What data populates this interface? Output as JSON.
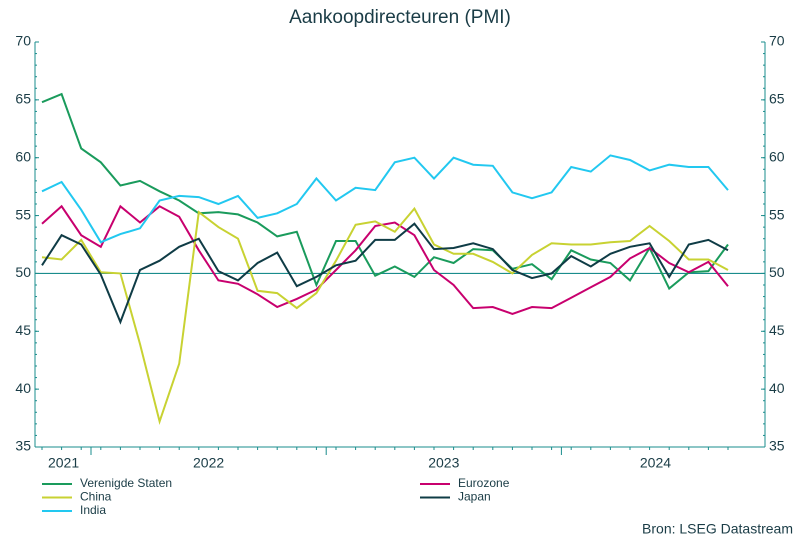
{
  "chart_data": {
    "type": "line",
    "title": "Aankoopdirecteuren (PMI)",
    "categories": [
      null,
      null,
      null,
      null,
      null,
      null,
      null,
      null,
      null,
      null,
      null,
      null,
      null,
      null,
      null,
      null,
      null,
      null,
      null,
      null,
      null,
      null,
      null,
      null,
      null,
      null,
      null,
      null,
      null,
      null,
      null,
      null,
      null,
      null,
      null,
      null
    ],
    "xticks": [
      {
        "value": 1.1,
        "label": "2021"
      },
      {
        "value": 8.5,
        "label": "2022"
      },
      {
        "value": 20.5,
        "label": "2023"
      },
      {
        "value": 31.3,
        "label": "2024"
      }
    ],
    "xtick_marks": [
      2.5,
      14.5,
      26.5
    ],
    "ylim": [
      35,
      70
    ],
    "yticks": [
      35,
      40,
      45,
      50,
      55,
      60,
      65,
      70
    ],
    "reference_line": 50,
    "series": [
      {
        "name": "Verenigde Staten",
        "color": "#1a9b5c",
        "values": [
          64.8,
          65.5,
          60.8,
          59.6,
          57.6,
          58.0,
          57.1,
          56.3,
          55.2,
          55.3,
          55.1,
          54.4,
          53.2,
          53.6,
          49.0,
          52.8,
          52.8,
          49.8,
          50.6,
          49.7,
          51.4,
          50.9,
          52.1,
          52.0,
          50.4,
          50.8,
          49.5,
          52.0,
          51.2,
          50.9,
          49.4,
          52.2,
          48.7,
          50.1,
          50.2,
          52.5
        ]
      },
      {
        "name": "Eurozone",
        "color": "#c8006e",
        "values": [
          54.3,
          55.8,
          53.3,
          52.3,
          55.8,
          54.4,
          55.8,
          54.9,
          52.0,
          49.4,
          49.1,
          48.2,
          47.1,
          47.8,
          48.6,
          50.3,
          52.0,
          54.1,
          54.4,
          53.3,
          50.3,
          49.0,
          47.0,
          47.1,
          46.5,
          47.1,
          47.0,
          47.9,
          48.8,
          49.7,
          51.3,
          52.2,
          50.9,
          50.1,
          51.0,
          48.9
        ]
      },
      {
        "name": "China",
        "color": "#c8d232",
        "values": [
          51.4,
          51.2,
          52.9,
          50.1,
          50.0,
          43.9,
          37.2,
          42.2,
          55.3,
          54.0,
          53.0,
          48.5,
          48.3,
          47.0,
          48.3,
          51.1,
          54.2,
          54.5,
          53.6,
          55.6,
          52.5,
          51.7,
          51.7,
          51.0,
          50.0,
          51.6,
          52.6,
          52.5,
          52.5,
          52.7,
          52.8,
          54.1,
          52.8,
          51.2,
          51.2,
          50.3
        ]
      },
      {
        "name": "Japan",
        "color": "#0f3c46",
        "values": [
          50.7,
          53.3,
          52.5,
          49.9,
          45.8,
          50.3,
          51.1,
          52.3,
          53.0,
          50.2,
          49.4,
          50.9,
          51.8,
          48.9,
          49.7,
          50.7,
          51.1,
          52.9,
          52.9,
          54.3,
          52.1,
          52.2,
          52.6,
          52.1,
          50.3,
          49.6,
          50.0,
          51.5,
          50.6,
          51.7,
          52.3,
          52.6,
          49.7,
          52.5,
          52.9,
          52.0
        ]
      },
      {
        "name": "India",
        "color": "#22c8f0",
        "values": [
          57.1,
          57.9,
          55.5,
          52.7,
          53.4,
          53.9,
          56.3,
          56.7,
          56.6,
          56.0,
          56.7,
          54.8,
          55.2,
          56.0,
          58.2,
          56.3,
          57.4,
          57.2,
          59.6,
          60.0,
          58.2,
          60.0,
          59.4,
          59.3,
          57.0,
          56.5,
          57.0,
          59.2,
          58.8,
          60.2,
          59.8,
          58.9,
          59.4,
          59.2,
          59.2,
          57.2
        ]
      }
    ],
    "source": "Bron: LSEG Datastream"
  }
}
